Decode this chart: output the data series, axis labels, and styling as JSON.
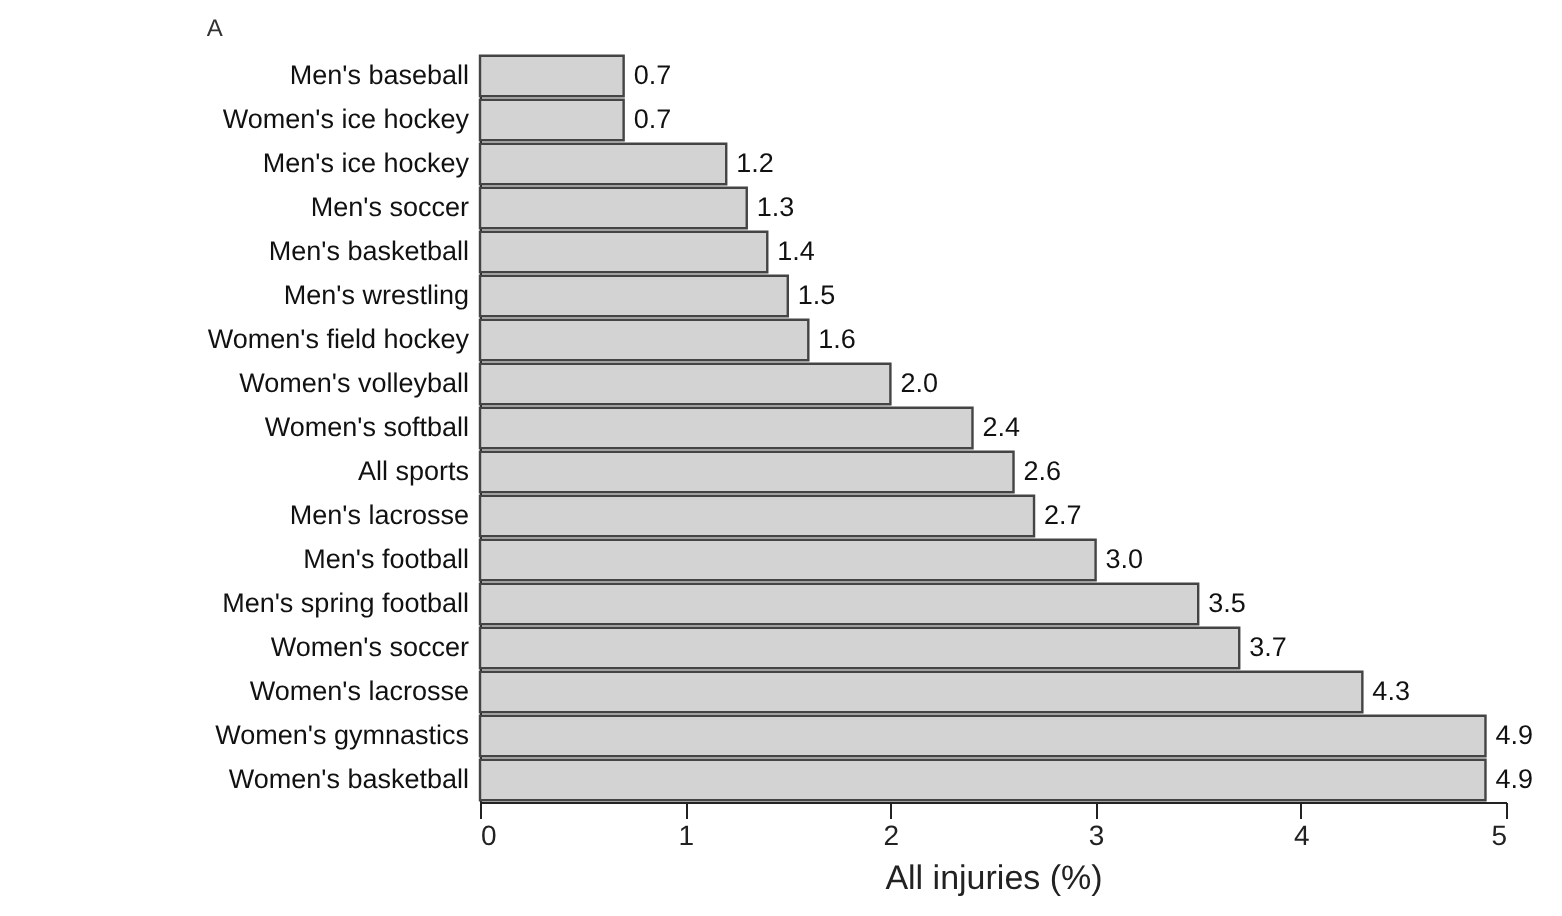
{
  "chart_data": {
    "type": "bar",
    "orientation": "horizontal",
    "title": "A",
    "xlabel": "All injuries (%)",
    "categories": [
      "Men's baseball",
      "Women's ice hockey",
      "Men's ice hockey",
      "Men's soccer",
      "Men's basketball",
      "Men's wrestling",
      "Women's field hockey",
      "Women's volleyball",
      "Women's softball",
      "All sports",
      "Men's lacrosse",
      "Men's football",
      "Men's spring football",
      "Women's soccer",
      "Women's lacrosse",
      "Women's gymnastics",
      "Women's basketball"
    ],
    "values": [
      0.7,
      0.7,
      1.2,
      1.3,
      1.4,
      1.5,
      1.6,
      2.0,
      2.4,
      2.6,
      2.7,
      3.0,
      3.5,
      3.7,
      4.3,
      4.9,
      4.9
    ],
    "value_labels": [
      "0.7",
      "0.7",
      "1.2",
      "1.3",
      "1.4",
      "1.5",
      "1.6",
      "2.0",
      "2.4",
      "2.6",
      "2.7",
      "3.0",
      "3.5",
      "3.7",
      "4.3",
      "4.9",
      "4.9"
    ],
    "color": "#d3d3d3",
    "xlim": [
      0,
      5
    ],
    "xticks": [
      0,
      1,
      2,
      3,
      4,
      5
    ],
    "grid": false
  }
}
